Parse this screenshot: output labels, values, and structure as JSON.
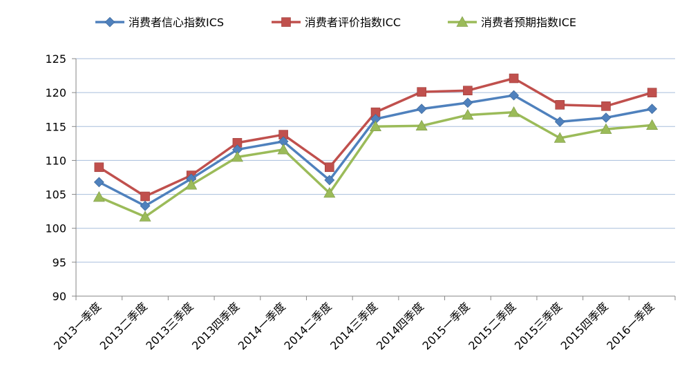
{
  "chart_data": {
    "type": "line",
    "categories": [
      "2013一季度",
      "2013二季度",
      "2013三季度",
      "2013四季度",
      "2014一季度",
      "2014二季度",
      "2014三季度",
      "2014四季度",
      "2015一季度",
      "2015二季度",
      "2015三季度",
      "2015四季度",
      "2016一季度"
    ],
    "series": [
      {
        "name": "消费者信心指数ICS",
        "color": "#4F81BD",
        "marker": "diamond",
        "values": [
          106.8,
          103.3,
          107.3,
          111.6,
          112.8,
          107.1,
          116.1,
          117.6,
          118.5,
          119.6,
          115.7,
          116.3,
          117.6
        ]
      },
      {
        "name": "消费者评价指数ICC",
        "color": "#C0504D",
        "marker": "square",
        "values": [
          109.0,
          104.7,
          107.8,
          112.6,
          113.8,
          109.0,
          117.1,
          120.1,
          120.3,
          122.1,
          118.2,
          118.0,
          120.0
        ]
      },
      {
        "name": "消费者预期指数ICE",
        "color": "#9BBB59",
        "marker": "triangle",
        "values": [
          104.6,
          101.7,
          106.4,
          110.5,
          111.6,
          105.2,
          115.0,
          115.1,
          116.7,
          117.1,
          113.3,
          114.6,
          115.2
        ]
      }
    ],
    "y_ticks": [
      "125",
      "120",
      "115",
      "110",
      "105",
      "100",
      "95",
      "90"
    ],
    "ylim": [
      90,
      125
    ],
    "y_step": 5,
    "grid": true,
    "legend_position": "top"
  }
}
